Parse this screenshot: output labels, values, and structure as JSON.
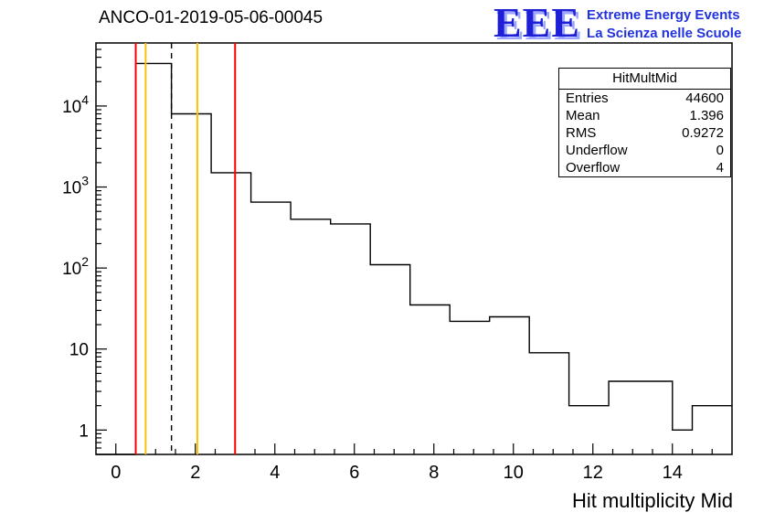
{
  "page": {
    "title": "ANCO-01-2019-05-06-00045",
    "logo": {
      "acronym": "EEE",
      "line1": "Extreme Energy Events",
      "line2": "La Scienza nelle Scuole",
      "color": "#2233dd"
    }
  },
  "stats": {
    "header": "HitMultMid",
    "rows": [
      {
        "label": "Entries",
        "value": "44600"
      },
      {
        "label": "Mean",
        "value": "1.396"
      },
      {
        "label": "RMS",
        "value": "0.9272"
      },
      {
        "label": "Underflow",
        "value": "0"
      },
      {
        "label": "Overflow",
        "value": "4"
      }
    ]
  },
  "chart_data": {
    "type": "bar",
    "title": "ANCO-01-2019-05-06-00045",
    "xlabel": "Hit multiplicity Mid",
    "ylabel": "",
    "y_scale": "log",
    "xlim": [
      -0.5,
      15.5
    ],
    "ylim": [
      0.5,
      60000
    ],
    "grid": false,
    "legend": "none",
    "histogram_color": "#000000",
    "histogram_steps": [
      {
        "x1": 0.5,
        "x2": 1.4,
        "count": 33500
      },
      {
        "x1": 1.4,
        "x2": 2.4,
        "count": 8000
      },
      {
        "x1": 2.4,
        "x2": 3.4,
        "count": 1500
      },
      {
        "x1": 3.4,
        "x2": 4.4,
        "count": 650
      },
      {
        "x1": 4.4,
        "x2": 5.4,
        "count": 400
      },
      {
        "x1": 5.4,
        "x2": 6.4,
        "count": 350
      },
      {
        "x1": 6.4,
        "x2": 7.4,
        "count": 110
      },
      {
        "x1": 7.4,
        "x2": 8.4,
        "count": 35
      },
      {
        "x1": 8.4,
        "x2": 9.4,
        "count": 22
      },
      {
        "x1": 9.4,
        "x2": 10.4,
        "count": 25
      },
      {
        "x1": 10.4,
        "x2": 11.4,
        "count": 9
      },
      {
        "x1": 11.4,
        "x2": 12.4,
        "count": 2
      },
      {
        "x1": 12.4,
        "x2": 14.0,
        "count": 4
      },
      {
        "x1": 14.0,
        "x2": 14.5,
        "count": 1
      },
      {
        "x1": 14.5,
        "x2": 15.5,
        "count": 2
      }
    ],
    "x_ticks": {
      "major": [
        0,
        2,
        4,
        6,
        8,
        10,
        12,
        14
      ],
      "labels": [
        "0",
        "2",
        "4",
        "6",
        "8",
        "10",
        "12",
        "14"
      ],
      "minor_step": 0.5
    },
    "y_ticks": [
      {
        "value": 1,
        "text": "1"
      },
      {
        "value": 10,
        "text": "10"
      },
      {
        "value": 100,
        "text": "10",
        "exp": "2"
      },
      {
        "value": 1000,
        "text": "10",
        "exp": "3"
      },
      {
        "value": 10000,
        "text": "10",
        "exp": "4"
      }
    ],
    "markers": [
      {
        "x": 0.5,
        "color": "#ff0000",
        "style": "solid"
      },
      {
        "x": 0.75,
        "color": "#ffc000",
        "style": "solid"
      },
      {
        "x": 1.4,
        "color": "#000000",
        "style": "dashed"
      },
      {
        "x": 2.05,
        "color": "#ffc000",
        "style": "solid"
      },
      {
        "x": 3.0,
        "color": "#ff0000",
        "style": "solid"
      }
    ]
  }
}
